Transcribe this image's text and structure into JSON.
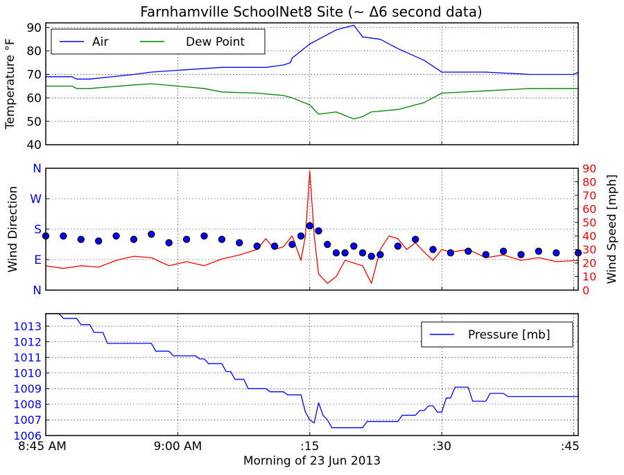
{
  "title": "Farnhamville SchoolNet8 Site (~ Δ6 second data)",
  "xlabel": "Morning of 23 Jun 2013",
  "x_ticks": [
    {
      "t": 0,
      "label": "8:45 AM"
    },
    {
      "t": 15,
      "label": "9:00 AM"
    },
    {
      "t": 30,
      "label": ":15"
    },
    {
      "t": 45,
      "label": ":30"
    },
    {
      "t": 60,
      "label": ":45"
    }
  ],
  "colors": {
    "air": "#0000ff",
    "dew": "#008000",
    "wind_speed": "#ff0000",
    "wind_dir_fill": "#0000ff",
    "pressure": "#0000ff",
    "dir_axis": "#0000ff",
    "speed_axis": "#ff0000"
  },
  "chart_data": [
    {
      "type": "line",
      "ylabel": "Temperature °F",
      "xlim": [
        0,
        60.5
      ],
      "ylim": [
        40,
        92
      ],
      "yticks": [
        40,
        50,
        60,
        70,
        80,
        90
      ],
      "grid": true,
      "legend": "top-left",
      "series": [
        {
          "name": "Air",
          "x": [
            0,
            3,
            3.5,
            5,
            10,
            12,
            20,
            25,
            27,
            27.8,
            28,
            30,
            32,
            33,
            34,
            35,
            36,
            38,
            40,
            43,
            45,
            50,
            55,
            60,
            60.5
          ],
          "y": [
            69,
            69,
            68,
            68,
            70,
            71,
            73,
            73,
            74,
            75,
            77,
            83,
            87,
            89,
            90,
            91,
            86,
            85,
            81,
            76,
            71,
            71,
            70,
            70,
            71
          ]
        },
        {
          "name": "Dew Point",
          "x": [
            0,
            3,
            3.5,
            5,
            10,
            12,
            15,
            18,
            20,
            24,
            27,
            28,
            30,
            31,
            33,
            35,
            36,
            37,
            40,
            43,
            45,
            50,
            55,
            60.5
          ],
          "y": [
            65,
            65,
            64,
            64,
            65.5,
            66,
            65,
            64,
            62.5,
            62,
            61,
            60,
            57,
            53,
            54,
            51,
            52,
            54,
            55,
            58,
            62,
            63,
            64,
            64
          ]
        }
      ]
    },
    {
      "type": "scatter+line",
      "ylabel_left": "Wind Direction",
      "ylabel_right": "Wind Speed [mph]",
      "xlim": [
        0,
        60.5
      ],
      "ylim_direction": [
        0,
        360
      ],
      "direction_ticks": [
        {
          "value": 0,
          "label": "N"
        },
        {
          "value": 90,
          "label": "E"
        },
        {
          "value": 180,
          "label": "S"
        },
        {
          "value": 270,
          "label": "W"
        },
        {
          "value": 360,
          "label": "N"
        }
      ],
      "ylim_speed": [
        0,
        90
      ],
      "speed_ticks": [
        0,
        10,
        20,
        30,
        40,
        50,
        60,
        70,
        80,
        90
      ],
      "grid": true,
      "series": [
        {
          "name": "Wind Direction",
          "x": [
            0,
            2,
            4,
            6,
            8,
            10,
            12,
            14,
            16,
            18,
            20,
            22,
            24,
            26,
            28,
            29,
            30,
            31,
            32,
            33,
            34,
            35,
            36,
            37,
            38,
            40,
            42,
            44,
            46,
            48,
            50,
            52,
            54,
            56,
            58,
            60.5
          ],
          "y": [
            160,
            160,
            150,
            145,
            160,
            150,
            165,
            140,
            150,
            160,
            150,
            140,
            130,
            130,
            135,
            160,
            190,
            175,
            135,
            110,
            110,
            130,
            110,
            100,
            105,
            130,
            150,
            120,
            110,
            115,
            105,
            115,
            105,
            115,
            110,
            110
          ]
        },
        {
          "name": "Wind Speed",
          "x": [
            0,
            2,
            4,
            6,
            8,
            10,
            12,
            14,
            16,
            18,
            20,
            22,
            24,
            25,
            26,
            27,
            28,
            29,
            29.5,
            30,
            30.5,
            31,
            32,
            33,
            34,
            35,
            36,
            37,
            38,
            39,
            40,
            41,
            42,
            43,
            44,
            45,
            46,
            48,
            50,
            52,
            54,
            56,
            58,
            60.5
          ],
          "y": [
            18,
            16,
            18,
            17,
            22,
            25,
            24,
            18,
            21,
            18,
            23,
            26,
            30,
            38,
            30,
            32,
            40,
            22,
            40,
            88,
            40,
            12,
            5,
            10,
            22,
            20,
            18,
            5,
            30,
            40,
            38,
            30,
            35,
            28,
            22,
            30,
            28,
            30,
            24,
            26,
            22,
            24,
            21,
            22
          ]
        }
      ]
    },
    {
      "type": "line",
      "ylim": [
        1006,
        1013.8
      ],
      "yticks": [
        1006,
        1007,
        1008,
        1009,
        1010,
        1011,
        1012,
        1013
      ],
      "grid": true,
      "legend": "top-right",
      "series": [
        {
          "name": "Pressure [mb]",
          "x": [
            0,
            1.5,
            2,
            3.5,
            4,
            5,
            5.5,
            6.5,
            7,
            12,
            12.5,
            14,
            14.5,
            17,
            17.5,
            18,
            18.5,
            20,
            20.5,
            21,
            21.5,
            22.5,
            23,
            25,
            25.5,
            27,
            27.5,
            29,
            29.5,
            30,
            30.5,
            31,
            31.5,
            32,
            32.5,
            36,
            36.5,
            40,
            40.5,
            42,
            42.5,
            43,
            43.5,
            44,
            44.5,
            45,
            45.5,
            46,
            46.5,
            48,
            48.5,
            50,
            50.5,
            52,
            52.5,
            60.5
          ],
          "y": [
            1013.8,
            1013.8,
            1013.5,
            1013.5,
            1013.1,
            1013.1,
            1012.6,
            1012.6,
            1011.9,
            1011.9,
            1011.4,
            1011.4,
            1011.1,
            1011.1,
            1010.9,
            1010.9,
            1010.6,
            1010.6,
            1010.1,
            1010.1,
            1009.6,
            1009.6,
            1009.0,
            1009.0,
            1008.8,
            1008.8,
            1008.6,
            1008.6,
            1007.5,
            1007.0,
            1006.8,
            1008.1,
            1007.3,
            1007.0,
            1006.5,
            1006.5,
            1006.9,
            1006.9,
            1007.3,
            1007.3,
            1007.6,
            1007.6,
            1007.9,
            1007.9,
            1007.5,
            1007.5,
            1008.4,
            1008.4,
            1009.1,
            1009.1,
            1008.2,
            1008.2,
            1008.7,
            1008.7,
            1008.5,
            1008.5
          ]
        }
      ]
    }
  ]
}
